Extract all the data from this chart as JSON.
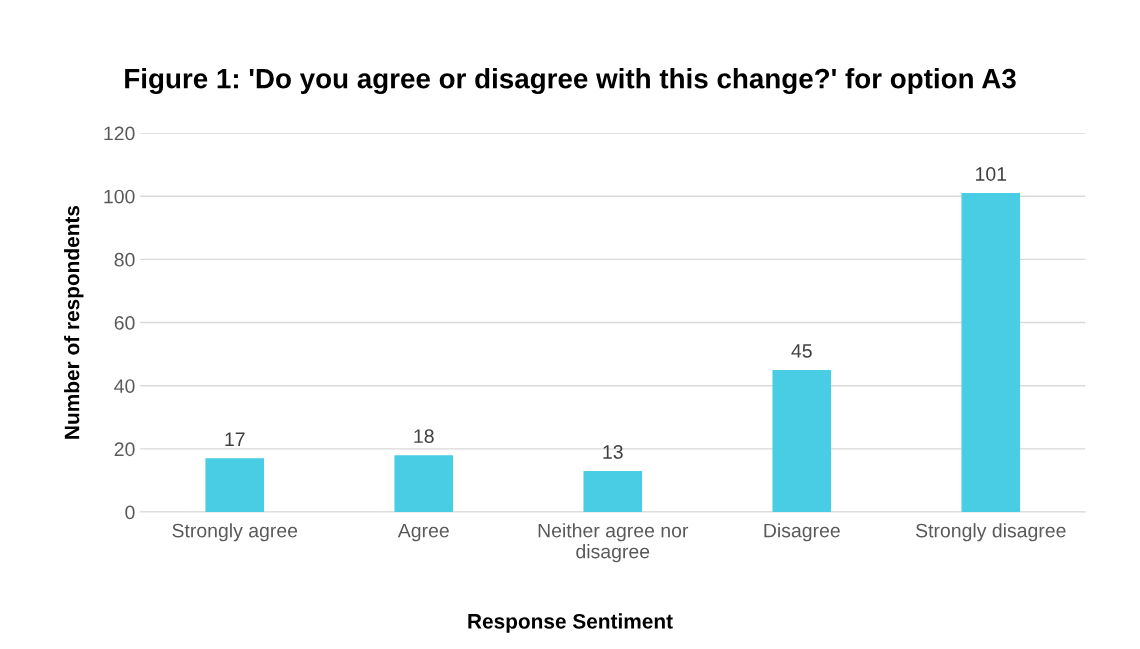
{
  "chart_data": {
    "type": "bar",
    "title": "Figure 1: 'Do you agree or disagree with this change?' for option A3",
    "xlabel": "Response Sentiment",
    "ylabel": "Number of respondents",
    "categories": [
      "Strongly agree",
      "Agree",
      "Neither agree nor disagree",
      "Disagree",
      "Strongly disagree"
    ],
    "values": [
      17,
      18,
      13,
      45,
      101
    ],
    "color": "#48cde4",
    "ylim": [
      0,
      120
    ],
    "yticks": [
      0,
      20,
      40,
      60,
      80,
      100,
      120
    ],
    "grid": "y",
    "data_labels": true
  }
}
